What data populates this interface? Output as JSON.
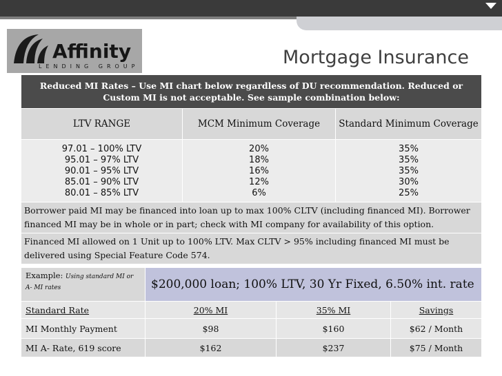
{
  "logo": {
    "word": "Affinity",
    "sub": "LENDING GROUP"
  },
  "title": "Mortgage Insurance",
  "table1": {
    "header": "Reduced MI Rates – Use MI chart below regardless of DU recommendation.  Reduced or Custom MI is not acceptable.  See sample combination below:",
    "columns": [
      "LTV RANGE",
      "MCM Minimum Coverage",
      "Standard Minimum Coverage"
    ],
    "rows": [
      [
        "97.01 – 100% LTV",
        "20%",
        "35%"
      ],
      [
        "95.01 – 97% LTV",
        "18%",
        "35%"
      ],
      [
        "90.01 – 95% LTV",
        "16%",
        "35%"
      ],
      [
        "85.01 – 90% LTV",
        "12%",
        "30%"
      ],
      [
        "80.01 – 85% LTV",
        "6%",
        "25%"
      ]
    ],
    "note1": "Borrower paid MI may be financed into loan up to max 100% CLTV (including financed MI).  Borrower financed MI may be in whole or in part; check with MI company for availability of this option.",
    "note2": "Financed MI allowed on 1 Unit up to 100% LTV.  Max CLTV > 95% including financed MI must be delivered using Special Feature Code 574."
  },
  "example": {
    "label": "Example:",
    "label_small": "Using standard MI or A- MI rates",
    "scenario": "$200,000 loan; 100% LTV, 30 Yr Fixed, 6.50% int. rate",
    "headers": [
      "Standard Rate",
      "20% MI",
      "35% MI",
      "Savings"
    ],
    "rows": [
      [
        "MI Monthly Payment",
        "$98",
        "$160",
        "$62 / Month"
      ],
      [
        "MI A- Rate, 619 score",
        "$162",
        "$237",
        "$75 / Month"
      ]
    ]
  }
}
